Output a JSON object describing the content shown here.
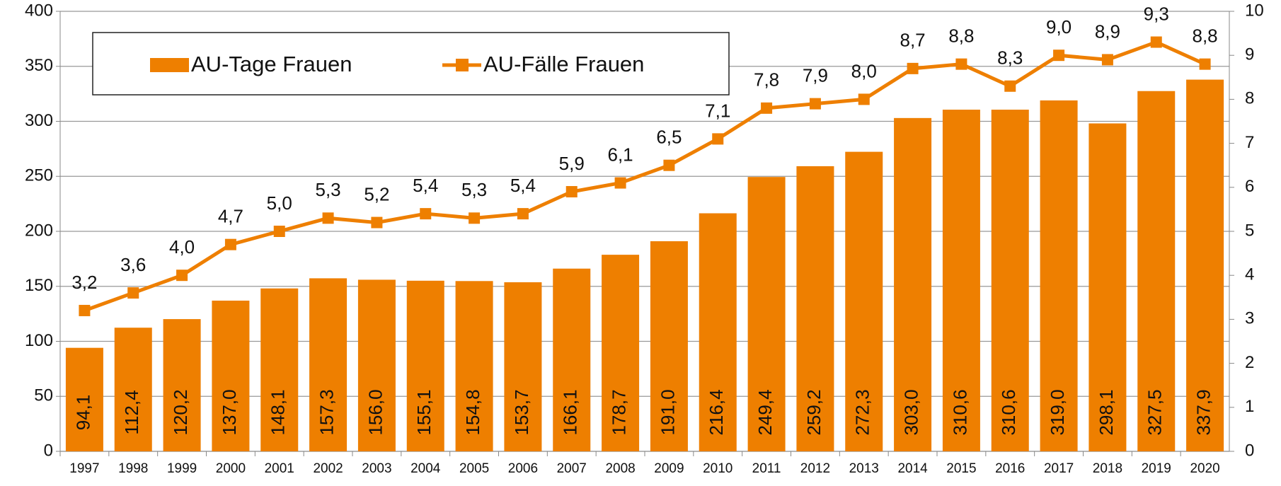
{
  "chart_data": {
    "type": "bar-line",
    "categories": [
      "1997",
      "1998",
      "1999",
      "2000",
      "2001",
      "2002",
      "2003",
      "2004",
      "2005",
      "2006",
      "2007",
      "2008",
      "2009",
      "2010",
      "2011",
      "2012",
      "2013",
      "2014",
      "2015",
      "2016",
      "2017",
      "2018",
      "2019",
      "2020"
    ],
    "series": [
      {
        "name": "AU-Tage Frauen",
        "type": "bar",
        "color": "#ee7f00",
        "values": [
          94.1,
          112.4,
          120.2,
          137.0,
          148.1,
          157.3,
          156.0,
          155.1,
          154.8,
          153.7,
          166.1,
          178.7,
          191.0,
          216.4,
          249.4,
          259.2,
          272.3,
          303.0,
          310.6,
          310.6,
          319.0,
          298.1,
          327.5,
          337.9
        ],
        "value_labels": [
          "94,1",
          "112,4",
          "120,2",
          "137,0",
          "148,1",
          "157,3",
          "156,0",
          "155,1",
          "154,8",
          "153,7",
          "166,1",
          "178,7",
          "191,0",
          "216,4",
          "249,4",
          "259,2",
          "272,3",
          "303,0",
          "310,6",
          "310,6",
          "319,0",
          "298,1",
          "327,5",
          "337,9"
        ]
      },
      {
        "name": "AU-Fälle Frauen",
        "type": "line",
        "axis": "y2",
        "color": "#ee7f00",
        "values": [
          3.2,
          3.6,
          4.0,
          4.7,
          5.0,
          5.3,
          5.2,
          5.4,
          5.3,
          5.4,
          5.9,
          6.1,
          6.5,
          7.1,
          7.8,
          7.9,
          8.0,
          8.7,
          8.8,
          8.3,
          9.0,
          8.9,
          9.3,
          8.8
        ],
        "value_labels": [
          "3,2",
          "3,6",
          "4,0",
          "4,7",
          "5,0",
          "5,3",
          "5,2",
          "5,4",
          "5,3",
          "5,4",
          "5,9",
          "6,1",
          "6,5",
          "7,1",
          "7,8",
          "7,9",
          "8,0",
          "8,7",
          "8,8",
          "8,3",
          "9,0",
          "8,9",
          "9,3",
          "8,8"
        ]
      }
    ],
    "ylim": [
      0,
      400
    ],
    "yticks": [
      0,
      50,
      100,
      150,
      200,
      250,
      300,
      350,
      400
    ],
    "y2lim": [
      0,
      10
    ],
    "y2ticks": [
      0,
      1,
      2,
      3,
      4,
      5,
      6,
      7,
      8,
      9,
      10
    ],
    "grid": true
  }
}
